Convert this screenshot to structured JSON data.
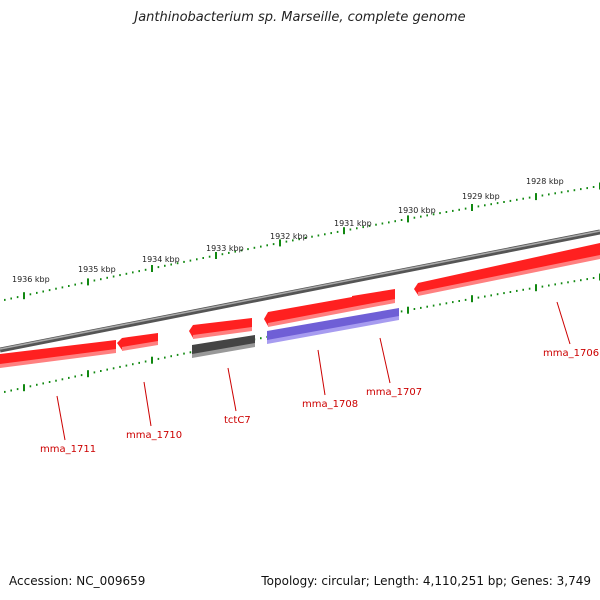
{
  "title": "Janthinobacterium sp. Marseille, complete genome",
  "footer": {
    "accession": "Accession: NC_009659",
    "summary": "Topology: circular; Length: 4,110,251 bp; Genes: 3,749"
  },
  "ticks": [
    "1928 kbp",
    "1929 kbp",
    "1930 kbp",
    "1931 kbp",
    "1932 kbp",
    "1933 kbp",
    "1934 kbp",
    "1935 kbp",
    "1936 kbp"
  ],
  "genes": [
    {
      "name": "mma_1706",
      "color": "#ff0000"
    },
    {
      "name": "mma_1707",
      "color": "#ff0000"
    },
    {
      "name": "mma_1708",
      "color": "#7766dd"
    },
    {
      "name": "tctC7",
      "color": "#555555"
    },
    {
      "name": "mma_1710",
      "color": "#ff0000"
    },
    {
      "name": "mma_1711",
      "color": "#ff0000"
    }
  ],
  "colors": {
    "backbone": "#777777",
    "ticks": "#118811",
    "forward_gene": "#ff0000",
    "reverse_gene": "#7766dd",
    "pseudo_gene": "#555555",
    "label": "#cc0000"
  }
}
